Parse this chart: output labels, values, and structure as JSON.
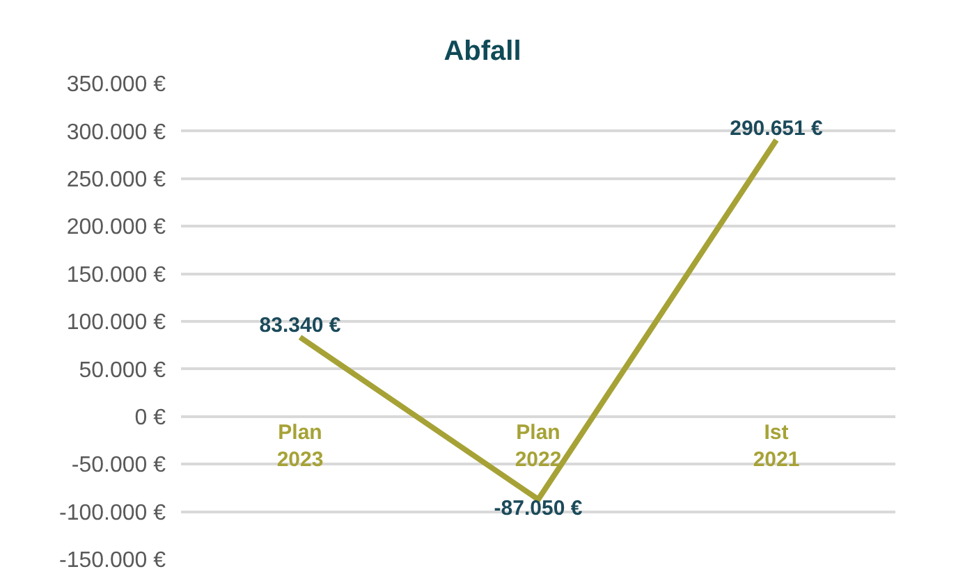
{
  "chart_data": {
    "type": "line",
    "title": "Abfall",
    "categories": [
      "Plan 2023",
      "Plan 2022",
      "Ist 2021"
    ],
    "series": [
      {
        "color": "#a6a236",
        "values": [
          83340,
          -87050,
          290651
        ],
        "value_labels": [
          "83.340 €",
          "-87.050 €",
          "290.651 €"
        ]
      }
    ],
    "ylim": [
      -150000,
      350000
    ],
    "yticks": [
      {
        "value": -150000,
        "label": "-150.000 €"
      },
      {
        "value": -100000,
        "label": "-100.000 €"
      },
      {
        "value": -50000,
        "label": "-50.000 €"
      },
      {
        "value": 0,
        "label": "0 €"
      },
      {
        "value": 50000,
        "label": "50.000 €"
      },
      {
        "value": 100000,
        "label": "100.000 €"
      },
      {
        "value": 150000,
        "label": "150.000 €"
      },
      {
        "value": 200000,
        "label": "200.000 €"
      },
      {
        "value": 250000,
        "label": "250.000 €"
      },
      {
        "value": 300000,
        "label": "300.000 €"
      },
      {
        "value": 350000,
        "label": "350.000 €"
      }
    ],
    "grid": "y",
    "marker": "none",
    "line_style": "solid"
  }
}
